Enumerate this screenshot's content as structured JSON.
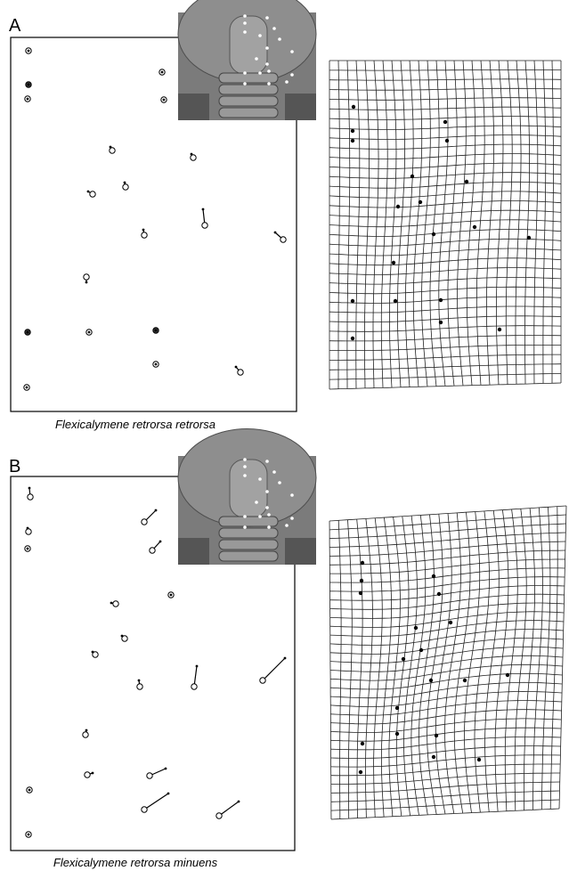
{
  "panels": [
    {
      "label": "A",
      "caption": "Flexicalymene retrorsa retrorsa"
    },
    {
      "label": "B",
      "caption": "Flexicalymene retrorsa minuens"
    }
  ]
}
